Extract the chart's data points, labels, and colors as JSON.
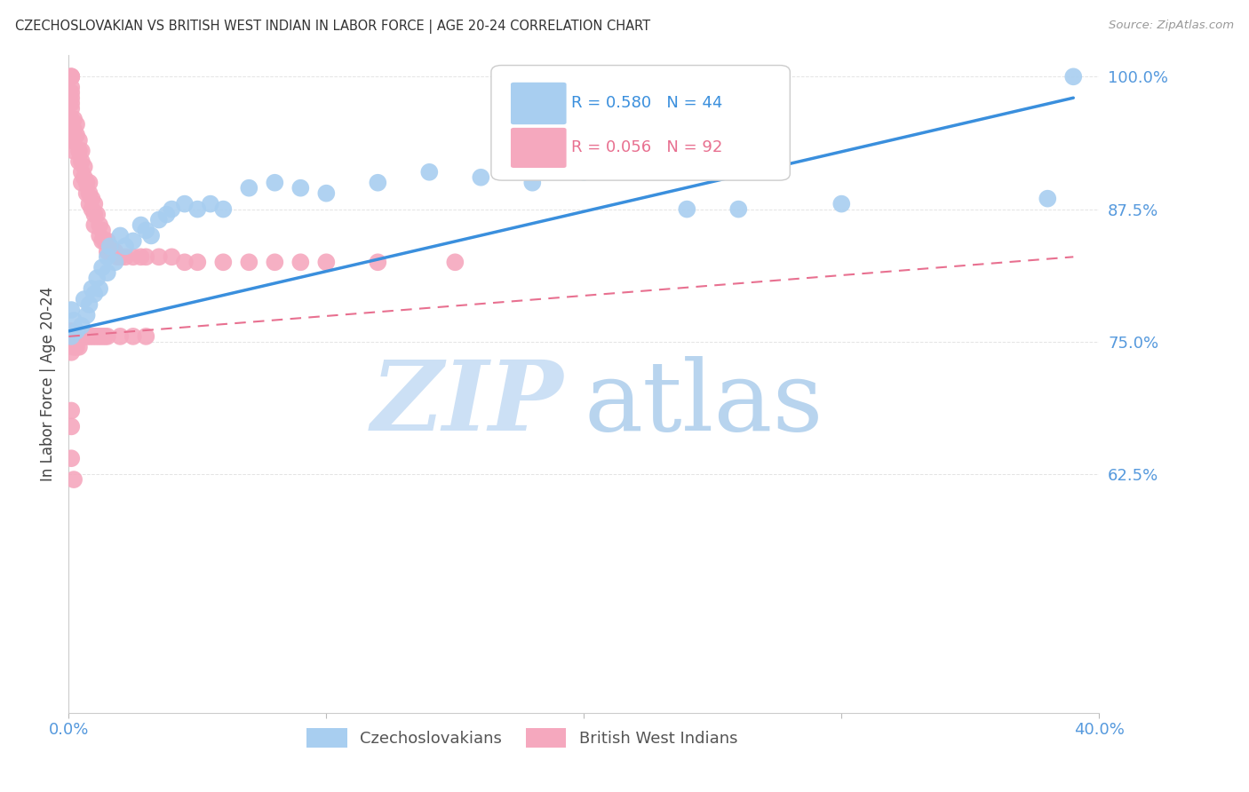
{
  "title": "CZECHOSLOVAKIAN VS BRITISH WEST INDIAN IN LABOR FORCE | AGE 20-24 CORRELATION CHART",
  "source": "Source: ZipAtlas.com",
  "ylabel": "In Labor Force | Age 20-24",
  "xlim": [
    0.0,
    0.4
  ],
  "ylim": [
    0.4,
    1.02
  ],
  "yticks": [
    0.625,
    0.75,
    0.875,
    1.0
  ],
  "ytick_labels": [
    "62.5%",
    "75.0%",
    "87.5%",
    "100.0%"
  ],
  "xticks": [
    0.0,
    0.1,
    0.2,
    0.3,
    0.4
  ],
  "xtick_labels": [
    "0.0%",
    "",
    "",
    "",
    "40.0%"
  ],
  "blue_R": 0.58,
  "blue_N": 44,
  "pink_R": 0.056,
  "pink_N": 92,
  "blue_color": "#a8cef0",
  "pink_color": "#f5a8be",
  "blue_line_color": "#3a8fdd",
  "pink_line_color": "#e87090",
  "watermark_zip_color": "#cce0f5",
  "watermark_atlas_color": "#b8d4ee",
  "axis_color": "#5599dd",
  "grid_color": "#dddddd",
  "blue_scatter_x": [
    0.001,
    0.001,
    0.002,
    0.003,
    0.005,
    0.006,
    0.007,
    0.008,
    0.009,
    0.01,
    0.011,
    0.012,
    0.013,
    0.015,
    0.015,
    0.016,
    0.018,
    0.02,
    0.022,
    0.025,
    0.028,
    0.03,
    0.032,
    0.035,
    0.038,
    0.04,
    0.045,
    0.05,
    0.055,
    0.06,
    0.07,
    0.08,
    0.09,
    0.1,
    0.12,
    0.14,
    0.16,
    0.18,
    0.2,
    0.24,
    0.26,
    0.3,
    0.38,
    0.39
  ],
  "blue_scatter_y": [
    0.755,
    0.78,
    0.77,
    0.76,
    0.765,
    0.79,
    0.775,
    0.785,
    0.8,
    0.795,
    0.81,
    0.8,
    0.82,
    0.83,
    0.815,
    0.84,
    0.825,
    0.85,
    0.84,
    0.845,
    0.86,
    0.855,
    0.85,
    0.865,
    0.87,
    0.875,
    0.88,
    0.875,
    0.88,
    0.875,
    0.895,
    0.9,
    0.895,
    0.89,
    0.9,
    0.91,
    0.905,
    0.9,
    0.91,
    0.875,
    0.875,
    0.88,
    0.885,
    1.0
  ],
  "pink_scatter_x": [
    0.001,
    0.001,
    0.001,
    0.001,
    0.001,
    0.001,
    0.001,
    0.001,
    0.001,
    0.001,
    0.001,
    0.001,
    0.002,
    0.002,
    0.002,
    0.002,
    0.003,
    0.003,
    0.004,
    0.004,
    0.004,
    0.005,
    0.005,
    0.005,
    0.005,
    0.006,
    0.006,
    0.007,
    0.007,
    0.008,
    0.008,
    0.008,
    0.009,
    0.009,
    0.01,
    0.01,
    0.01,
    0.011,
    0.012,
    0.012,
    0.013,
    0.013,
    0.014,
    0.015,
    0.015,
    0.016,
    0.017,
    0.018,
    0.019,
    0.02,
    0.022,
    0.025,
    0.028,
    0.03,
    0.035,
    0.04,
    0.045,
    0.05,
    0.06,
    0.07,
    0.08,
    0.09,
    0.1,
    0.12,
    0.15,
    0.001,
    0.001,
    0.001,
    0.002,
    0.002,
    0.003,
    0.003,
    0.004,
    0.004,
    0.005,
    0.006,
    0.007,
    0.008,
    0.009,
    0.01,
    0.011,
    0.012,
    0.013,
    0.014,
    0.015,
    0.02,
    0.025,
    0.03,
    0.001,
    0.001,
    0.001,
    0.002
  ],
  "pink_scatter_y": [
    1.0,
    1.0,
    1.0,
    0.99,
    0.985,
    0.98,
    0.975,
    0.97,
    0.96,
    0.955,
    0.95,
    0.94,
    0.96,
    0.95,
    0.94,
    0.93,
    0.955,
    0.945,
    0.94,
    0.93,
    0.92,
    0.93,
    0.92,
    0.91,
    0.9,
    0.915,
    0.905,
    0.9,
    0.89,
    0.9,
    0.89,
    0.88,
    0.885,
    0.875,
    0.88,
    0.87,
    0.86,
    0.87,
    0.86,
    0.85,
    0.855,
    0.845,
    0.845,
    0.845,
    0.835,
    0.84,
    0.835,
    0.835,
    0.83,
    0.83,
    0.83,
    0.83,
    0.83,
    0.83,
    0.83,
    0.83,
    0.825,
    0.825,
    0.825,
    0.825,
    0.825,
    0.825,
    0.825,
    0.825,
    0.825,
    0.76,
    0.75,
    0.74,
    0.755,
    0.745,
    0.755,
    0.745,
    0.755,
    0.745,
    0.755,
    0.755,
    0.755,
    0.755,
    0.755,
    0.755,
    0.755,
    0.755,
    0.755,
    0.755,
    0.755,
    0.755,
    0.755,
    0.755,
    0.685,
    0.67,
    0.64,
    0.62
  ],
  "blue_line_x0": 0.0,
  "blue_line_y0": 0.76,
  "blue_line_x1": 0.39,
  "blue_line_y1": 0.98,
  "pink_line_x0": 0.0,
  "pink_line_y0": 0.755,
  "pink_line_x1": 0.39,
  "pink_line_y1": 0.83
}
